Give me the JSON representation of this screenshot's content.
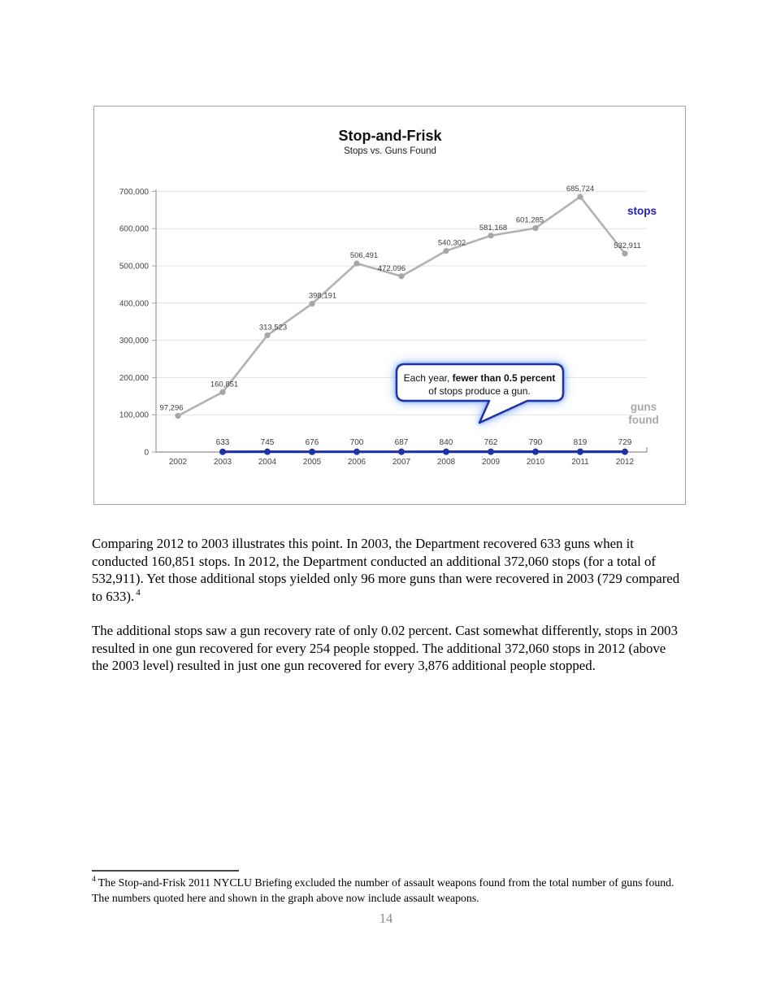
{
  "chart_data": {
    "type": "line",
    "title": "Stop-and-Frisk",
    "subtitle": "Stops vs. Guns Found",
    "categories": [
      2002,
      2003,
      2004,
      2005,
      2006,
      2007,
      2008,
      2009,
      2010,
      2011,
      2012
    ],
    "series": [
      {
        "name": "stops",
        "values": [
          97296,
          160851,
          313523,
          398191,
          506491,
          472096,
          540302,
          581168,
          601285,
          685724,
          532911
        ]
      },
      {
        "name": "guns found",
        "values": [
          null,
          633,
          745,
          676,
          700,
          687,
          840,
          762,
          790,
          819,
          729
        ]
      }
    ],
    "ylim": [
      0,
      700000
    ],
    "ytick_step": 100000,
    "grid": true,
    "legend_position": "right-inline",
    "annotation": {
      "line1_normal": "Each year, ",
      "line1_bold": "fewer than 0.5 percent",
      "line2": "of stops produce a gun."
    },
    "colors": {
      "stops_line": "#b2b2b2",
      "stops_marker": "#a6a6a6",
      "guns_line": "#2033a3",
      "stops_label": "#2222b2",
      "guns_found_label": "#a8a8a8",
      "callout_border": "#2033a3"
    }
  },
  "document": {
    "paragraph1": "Comparing 2012 to 2003 illustrates this point. In 2003, the Department recovered 633 guns when it conducted 160,851 stops. In 2012, the Department conducted an additional 372,060 stops (for a total of 532,911).  Yet those additional stops yielded only 96 more guns than were recovered in 2003 (729 compared to 633).",
    "footnote_ref": "4",
    "paragraph2": "The additional stops saw a gun recovery rate of only 0.02 percent. Cast somewhat differently, stops in 2003 resulted in one gun recovered for every 254 people stopped. The additional 372,060 stops in 2012 (above the 2003 level) resulted in just one gun recovered for every 3,876 additional people stopped.",
    "footnote_marker": "4",
    "footnote_text": "The Stop-and-Frisk 2011 NYCLU Briefing excluded the number of assault weapons found from the total number of guns found.  The numbers quoted here and shown in the graph above now include assault weapons.",
    "page_number": "14"
  }
}
